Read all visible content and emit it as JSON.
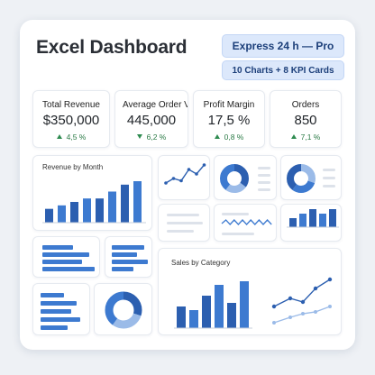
{
  "header": {
    "title": "Excel Dashboard",
    "badge_primary": "Express 24 h — Pro",
    "badge_secondary": "10 Charts + 8 KPI Cards"
  },
  "kpis": [
    {
      "label": "Total Revenue",
      "value": "$350,000",
      "delta": "4,5 %",
      "direction": "up"
    },
    {
      "label": "Average Order Value",
      "value": "445,000",
      "delta": "6,2 %",
      "direction": "down"
    },
    {
      "label": "Profit Margin",
      "value": "17,5 %",
      "delta": "0,8 %",
      "direction": "up"
    },
    {
      "label": "Orders",
      "value": "850",
      "delta": "7,1 %",
      "direction": "up"
    }
  ],
  "charts": {
    "revenue_by_month": {
      "title": "Revenue by Month"
    },
    "sales_by_category": {
      "title": "Sales by Category"
    }
  },
  "colors": {
    "accent": "#3d7ad0",
    "accent_dark": "#2c5fb0",
    "accent_light": "#9bbbe8",
    "positive": "#2e8b50"
  },
  "chart_data": [
    {
      "type": "bar",
      "title": "Revenue by Month",
      "values": [
        4,
        5,
        6,
        7,
        7,
        9,
        11,
        12
      ]
    },
    {
      "type": "bar",
      "title": "Sales by Category",
      "values": [
        6,
        5,
        9,
        12,
        7,
        13
      ]
    },
    {
      "type": "line",
      "values": [
        2,
        3,
        2.5,
        5,
        4,
        6
      ]
    },
    {
      "type": "pie",
      "values": [
        35,
        25,
        40
      ]
    },
    {
      "type": "pie",
      "values": [
        30,
        30,
        40
      ]
    },
    {
      "type": "bar",
      "values": [
        2,
        3,
        4,
        3,
        4
      ]
    }
  ]
}
